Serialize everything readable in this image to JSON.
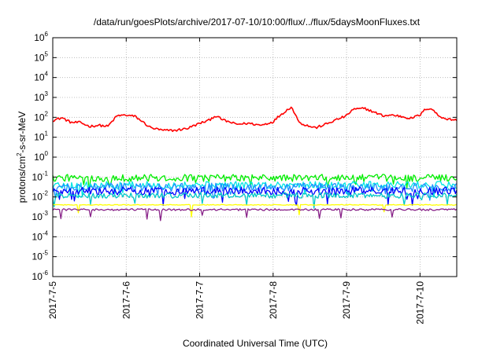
{
  "chart_data": {
    "type": "line",
    "title": "/data/run/goesPlots/archive/2017-07-10/10:00/flux/../flux/5daysMoonFluxes.txt",
    "xlabel": "Coordinated Universal Time (UTC)",
    "ylabel": "protons/cm²-s-sr-MeV",
    "ylabel_parts": {
      "pre": "protons/cm",
      "sup": "2",
      "post": "-s-sr-MeV"
    },
    "y_scale": "log",
    "ylim": [
      1e-06,
      1000000.0
    ],
    "y_ticks": [
      {
        "exp": "-6"
      },
      {
        "exp": "-5"
      },
      {
        "exp": "-4"
      },
      {
        "exp": "-3"
      },
      {
        "exp": "-2"
      },
      {
        "exp": "-1"
      },
      {
        "exp": "0"
      },
      {
        "exp": "1"
      },
      {
        "exp": "2"
      },
      {
        "exp": "3"
      },
      {
        "exp": "4"
      },
      {
        "exp": "5"
      },
      {
        "exp": "6"
      }
    ],
    "x_domain": [
      "2017-07-05",
      "2017-07-10 12:00"
    ],
    "x_ticks": [
      "2017-7-5",
      "2017-7-6",
      "2017-7-7",
      "2017-7-8",
      "2017-7-9",
      "2017-7-10"
    ],
    "grid": true,
    "legend": "none",
    "series": [
      {
        "color": "#ff0000",
        "base": 70,
        "noise_dex": 0.06,
        "values": [
          [
            "2017-07-05 00:00",
            70
          ],
          [
            "2017-07-05 03:00",
            95
          ],
          [
            "2017-07-05 06:00",
            55
          ],
          [
            "2017-07-05 09:00",
            55
          ],
          [
            "2017-07-05 12:00",
            35
          ],
          [
            "2017-07-05 15:00",
            40
          ],
          [
            "2017-07-05 18:00",
            35
          ],
          [
            "2017-07-05 21:00",
            120
          ],
          [
            "2017-07-06 00:00",
            130
          ],
          [
            "2017-07-06 03:00",
            110
          ],
          [
            "2017-07-06 06:00",
            50
          ],
          [
            "2017-07-06 08:00",
            30
          ],
          [
            "2017-07-06 12:00",
            22
          ],
          [
            "2017-07-06 16:00",
            22
          ],
          [
            "2017-07-06 20:00",
            28
          ],
          [
            "2017-07-07 00:00",
            50
          ],
          [
            "2017-07-07 03:00",
            70
          ],
          [
            "2017-07-07 05:00",
            120
          ],
          [
            "2017-07-07 08:00",
            70
          ],
          [
            "2017-07-07 12:00",
            45
          ],
          [
            "2017-07-07 16:00",
            50
          ],
          [
            "2017-07-07 20:00",
            40
          ],
          [
            "2017-07-08 00:00",
            60
          ],
          [
            "2017-07-08 02:00",
            120
          ],
          [
            "2017-07-08 04:00",
            200
          ],
          [
            "2017-07-08 06:00",
            350
          ],
          [
            "2017-07-08 07:00",
            150
          ],
          [
            "2017-07-08 09:00",
            50
          ],
          [
            "2017-07-08 12:00",
            35
          ],
          [
            "2017-07-08 14:00",
            30
          ],
          [
            "2017-07-08 18:00",
            50
          ],
          [
            "2017-07-08 21:00",
            80
          ],
          [
            "2017-07-09 00:00",
            120
          ],
          [
            "2017-07-09 02:00",
            250
          ],
          [
            "2017-07-09 06:00",
            280
          ],
          [
            "2017-07-09 09:00",
            180
          ],
          [
            "2017-07-09 12:00",
            120
          ],
          [
            "2017-07-09 15:00",
            130
          ],
          [
            "2017-07-09 18:00",
            110
          ],
          [
            "2017-07-09 21:00",
            90
          ],
          [
            "2017-07-10 00:00",
            130
          ],
          [
            "2017-07-10 02:00",
            280
          ],
          [
            "2017-07-10 04:00",
            260
          ],
          [
            "2017-07-10 06:00",
            120
          ],
          [
            "2017-07-10 09:00",
            80
          ],
          [
            "2017-07-10 12:00",
            75
          ]
        ]
      },
      {
        "color": "#00ee00",
        "base": 0.09,
        "noise_dex": 0.18
      },
      {
        "color": "#00e5e5",
        "base": 0.04,
        "noise_dex": 0.18
      },
      {
        "color": "#1e90ff",
        "base": 0.03,
        "noise_dex": 0.22
      },
      {
        "color": "#0000ff",
        "base": 0.02,
        "noise_dex": 0.2
      },
      {
        "color": "#00c8c8",
        "base": 0.012,
        "noise_dex": 0.14
      },
      {
        "color": "#ffff00",
        "base": 0.004,
        "noise_dex": 0.02
      },
      {
        "color": "#882288",
        "base": 0.0023,
        "noise_dex": 0.05
      }
    ]
  }
}
